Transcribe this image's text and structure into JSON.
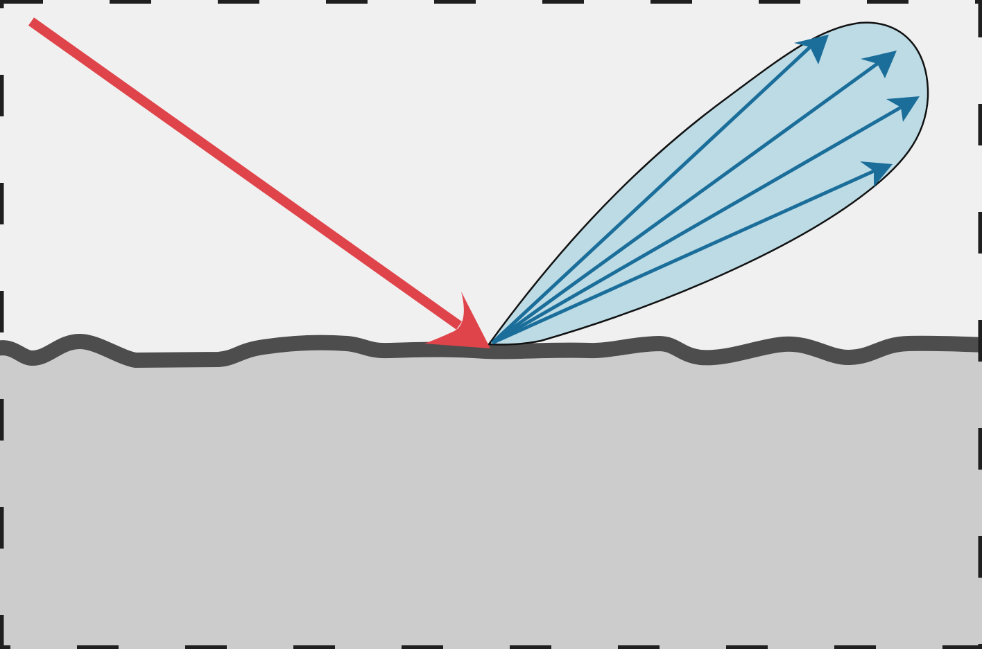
{
  "diagram": {
    "kind": "glossy-reflection",
    "colors": {
      "air": "#f0f0f0",
      "surface_material": "#cccccc",
      "surface_line": "#4d4d4d",
      "frame": "#1f1f1f",
      "incident_ray": "#e0444b",
      "lobe_fill": "#bcdbe5",
      "lobe_outline": "#111111",
      "reflected_rays": "#1b6e9a"
    },
    "elements": {
      "incident_ray": {
        "label": "",
        "count": 1
      },
      "reflection_lobe": {
        "label": ""
      },
      "reflected_rays": {
        "label": "",
        "count": 4
      },
      "rough_surface": {
        "label": ""
      },
      "frame": {
        "style": "dashed"
      }
    }
  }
}
